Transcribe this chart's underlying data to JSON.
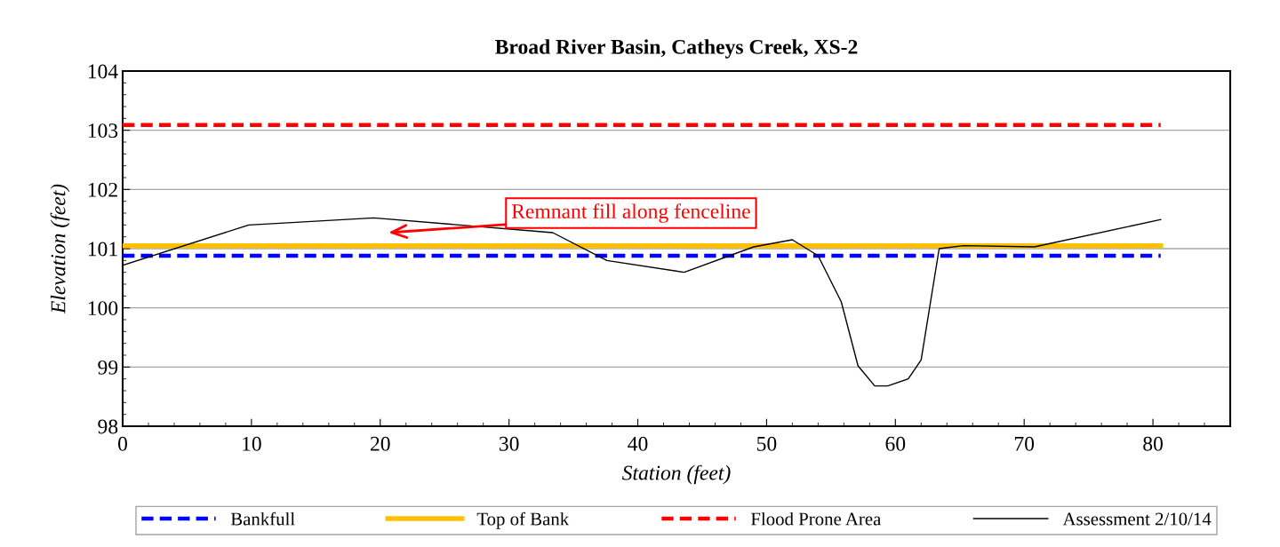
{
  "chart_data": {
    "type": "line",
    "title": "Broad River Basin, Catheys Creek, XS-2",
    "xlabel": "Station (feet)",
    "ylabel": "Elevation (feet)",
    "xlim": [
      0,
      86
    ],
    "ylim": [
      98,
      104
    ],
    "xticks": [
      0,
      10,
      20,
      30,
      40,
      50,
      60,
      70,
      80
    ],
    "yticks": [
      98,
      99,
      100,
      101,
      102,
      103,
      104
    ],
    "grid": "y",
    "legend": "bottom",
    "marker": "none",
    "annotations": [
      "Remnant fill along fenceline"
    ],
    "series": [
      {
        "name": "Bankfull",
        "color": "#0000ff",
        "line_style": "dashed",
        "x": [
          0,
          80.6
        ],
        "values": [
          100.88,
          100.88
        ]
      },
      {
        "name": "Top of Bank",
        "color": "#ffc000",
        "line_style": "solid",
        "x": [
          0,
          80.6
        ],
        "values": [
          101.05,
          101.05
        ]
      },
      {
        "name": "Flood Prone Area",
        "color": "#ff0000",
        "line_style": "dashed",
        "x": [
          0,
          80.6
        ],
        "values": [
          103.09,
          103.09
        ]
      },
      {
        "name": "Assessment 2/10/14",
        "color": "#000000",
        "line_style": "solid",
        "x": [
          0,
          9.8,
          19.5,
          33.4,
          37.6,
          43.6,
          49.0,
          52.0,
          54.0,
          55.8,
          57.1,
          58.4,
          59.4,
          61.0,
          62.0,
          63.4,
          65.3,
          70.8,
          80.6
        ],
        "values": [
          100.72,
          101.4,
          101.52,
          101.27,
          100.8,
          100.6,
          101.03,
          101.15,
          100.88,
          100.1,
          99.02,
          98.68,
          98.68,
          98.8,
          99.12,
          101.0,
          101.05,
          101.03,
          101.49
        ]
      }
    ]
  }
}
